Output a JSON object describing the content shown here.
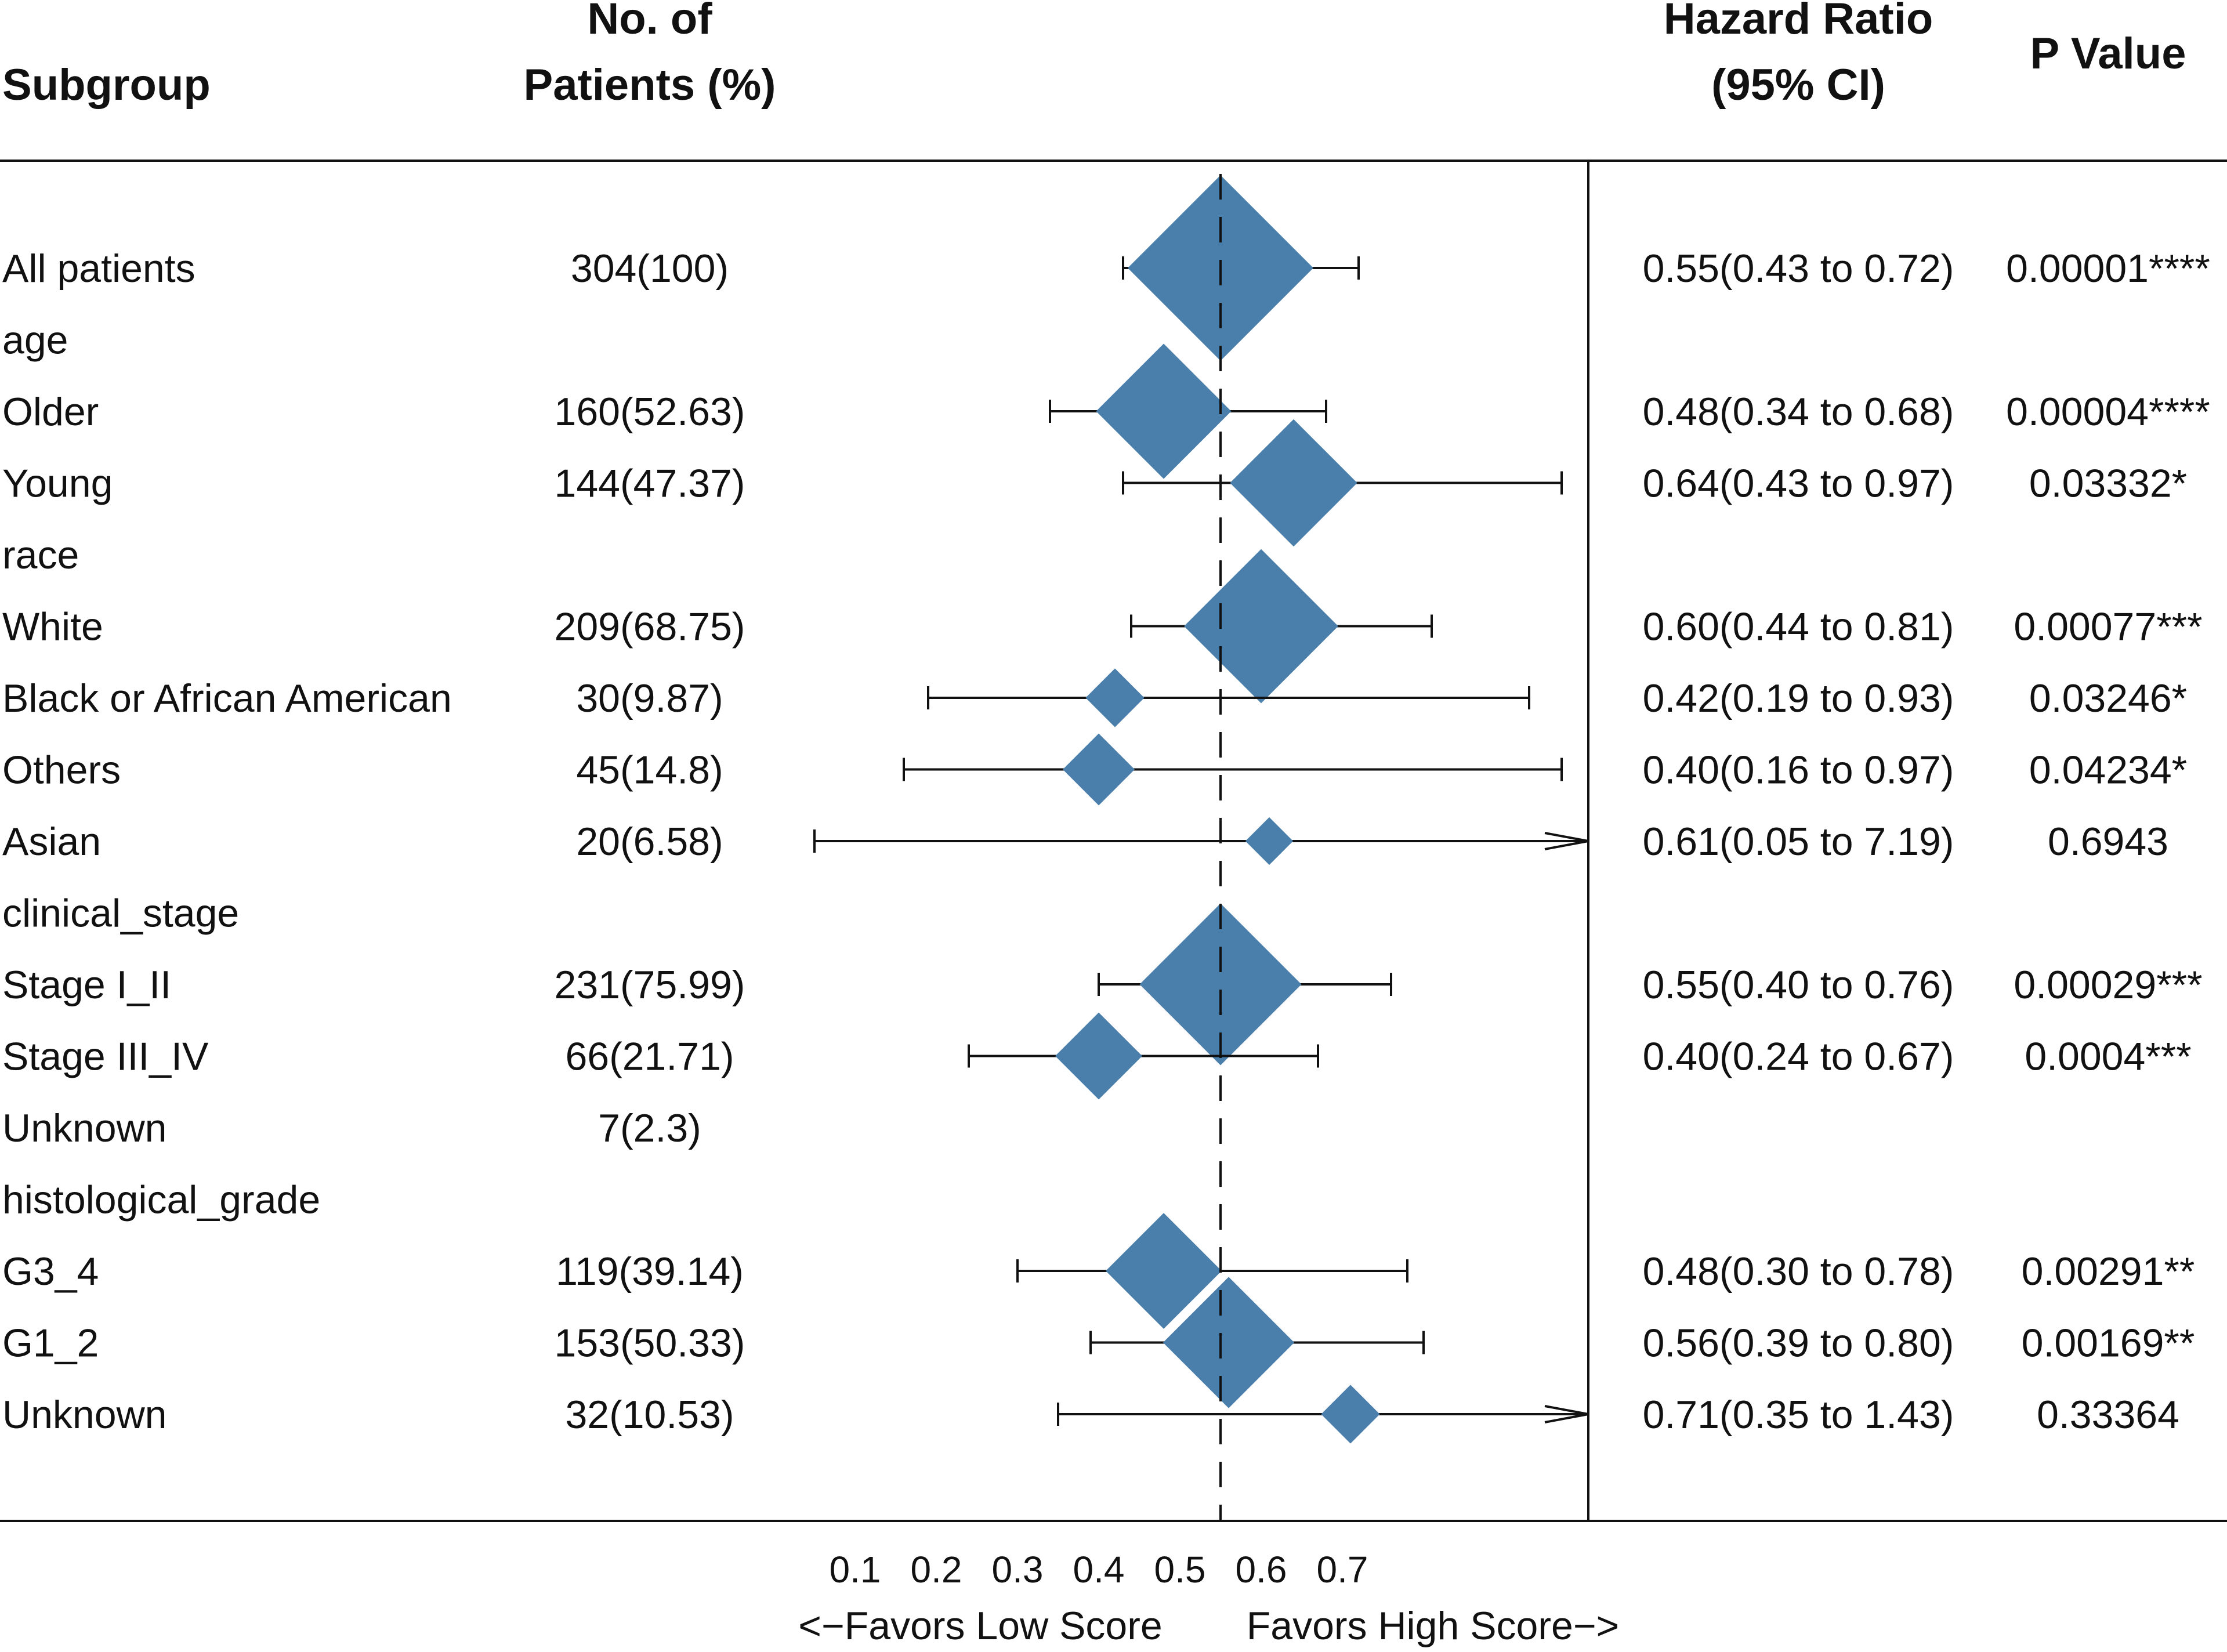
{
  "chart_data": {
    "type": "forest",
    "headers": {
      "subgroup": "Subgroup",
      "patients_line1": "No. of",
      "patients_line2": "Patients (%)",
      "hr_line1": "Hazard Ratio",
      "hr_line2": "(95% CI)",
      "pvalue": "P Value"
    },
    "rows": [
      {
        "label": "All patients",
        "n": "304(100)",
        "hr_text": "0.55(0.43 to 0.72)",
        "p": "0.00001****",
        "hr": 0.55,
        "lo": 0.43,
        "hi": 0.72,
        "box_weight": 1.0
      },
      {
        "label": "age",
        "n": "",
        "hr_text": "",
        "p": "",
        "hr": null
      },
      {
        "label": "Older",
        "n": "160(52.63)",
        "hr_text": "0.48(0.34 to 0.68)",
        "p": "0.00004****",
        "hr": 0.48,
        "lo": 0.34,
        "hi": 0.68,
        "box_weight": 0.53
      },
      {
        "label": "Young",
        "n": "144(47.37)",
        "hr_text": "0.64(0.43 to 0.97)",
        "p": "0.03332*",
        "hr": 0.64,
        "lo": 0.43,
        "hi": 0.97,
        "box_weight": 0.47
      },
      {
        "label": "race",
        "n": "",
        "hr_text": "",
        "p": "",
        "hr": null
      },
      {
        "label": "White",
        "n": "209(68.75)",
        "hr_text": "0.60(0.44 to 0.81)",
        "p": "0.00077***",
        "hr": 0.6,
        "lo": 0.44,
        "hi": 0.81,
        "box_weight": 0.69
      },
      {
        "label": "Black or African American",
        "n": "30(9.87)",
        "hr_text": "0.42(0.19 to 0.93)",
        "p": "0.03246*",
        "hr": 0.42,
        "lo": 0.19,
        "hi": 0.93,
        "box_weight": 0.1
      },
      {
        "label": "Others",
        "n": "45(14.8)",
        "hr_text": "0.40(0.16 to 0.97)",
        "p": "0.04234*",
        "hr": 0.4,
        "lo": 0.16,
        "hi": 0.97,
        "box_weight": 0.15
      },
      {
        "label": "Asian",
        "n": "20(6.58)",
        "hr_text": "0.61(0.05 to 7.19)",
        "p": "0.6943",
        "hr": 0.61,
        "lo": 0.05,
        "hi": 7.19,
        "box_weight": 0.066
      },
      {
        "label": "clinical_stage",
        "n": "",
        "hr_text": "",
        "p": "",
        "hr": null
      },
      {
        "label": "Stage I_II",
        "n": "231(75.99)",
        "hr_text": "0.55(0.40 to 0.76)",
        "p": "0.00029***",
        "hr": 0.55,
        "lo": 0.4,
        "hi": 0.76,
        "box_weight": 0.76
      },
      {
        "label": "Stage III_IV",
        "n": "66(21.71)",
        "hr_text": "0.40(0.24 to 0.67)",
        "p": "0.0004***",
        "hr": 0.4,
        "lo": 0.24,
        "hi": 0.67,
        "box_weight": 0.22
      },
      {
        "label": "Unknown",
        "n": "7(2.3)",
        "hr_text": "",
        "p": "",
        "hr": null
      },
      {
        "label": "histological_grade",
        "n": "",
        "hr_text": "",
        "p": "",
        "hr": null
      },
      {
        "label": "G3_4",
        "n": "119(39.14)",
        "hr_text": "0.48(0.30 to 0.78)",
        "p": "0.00291**",
        "hr": 0.48,
        "lo": 0.3,
        "hi": 0.78,
        "box_weight": 0.39
      },
      {
        "label": "G1_2",
        "n": "153(50.33)",
        "hr_text": "0.56(0.39 to 0.80)",
        "p": "0.00169**",
        "hr": 0.56,
        "lo": 0.39,
        "hi": 0.8,
        "box_weight": 0.5
      },
      {
        "label": "Unknown",
        "n": "32(10.53)",
        "hr_text": "0.71(0.35 to 1.43)",
        "p": "0.33364",
        "hr": 0.71,
        "lo": 0.35,
        "hi": 1.43,
        "box_weight": 0.1
      }
    ],
    "x_axis": {
      "ticks": [
        "0.1",
        "0.2",
        "0.3",
        "0.4",
        "0.5",
        "0.6",
        "0.7"
      ],
      "range": [
        0.1,
        1.0
      ],
      "reference_line": 0.55,
      "label_left": "<−Favors Low Score",
      "label_right": "Favors High Score−>"
    },
    "marker_color": "#4a7eab"
  }
}
